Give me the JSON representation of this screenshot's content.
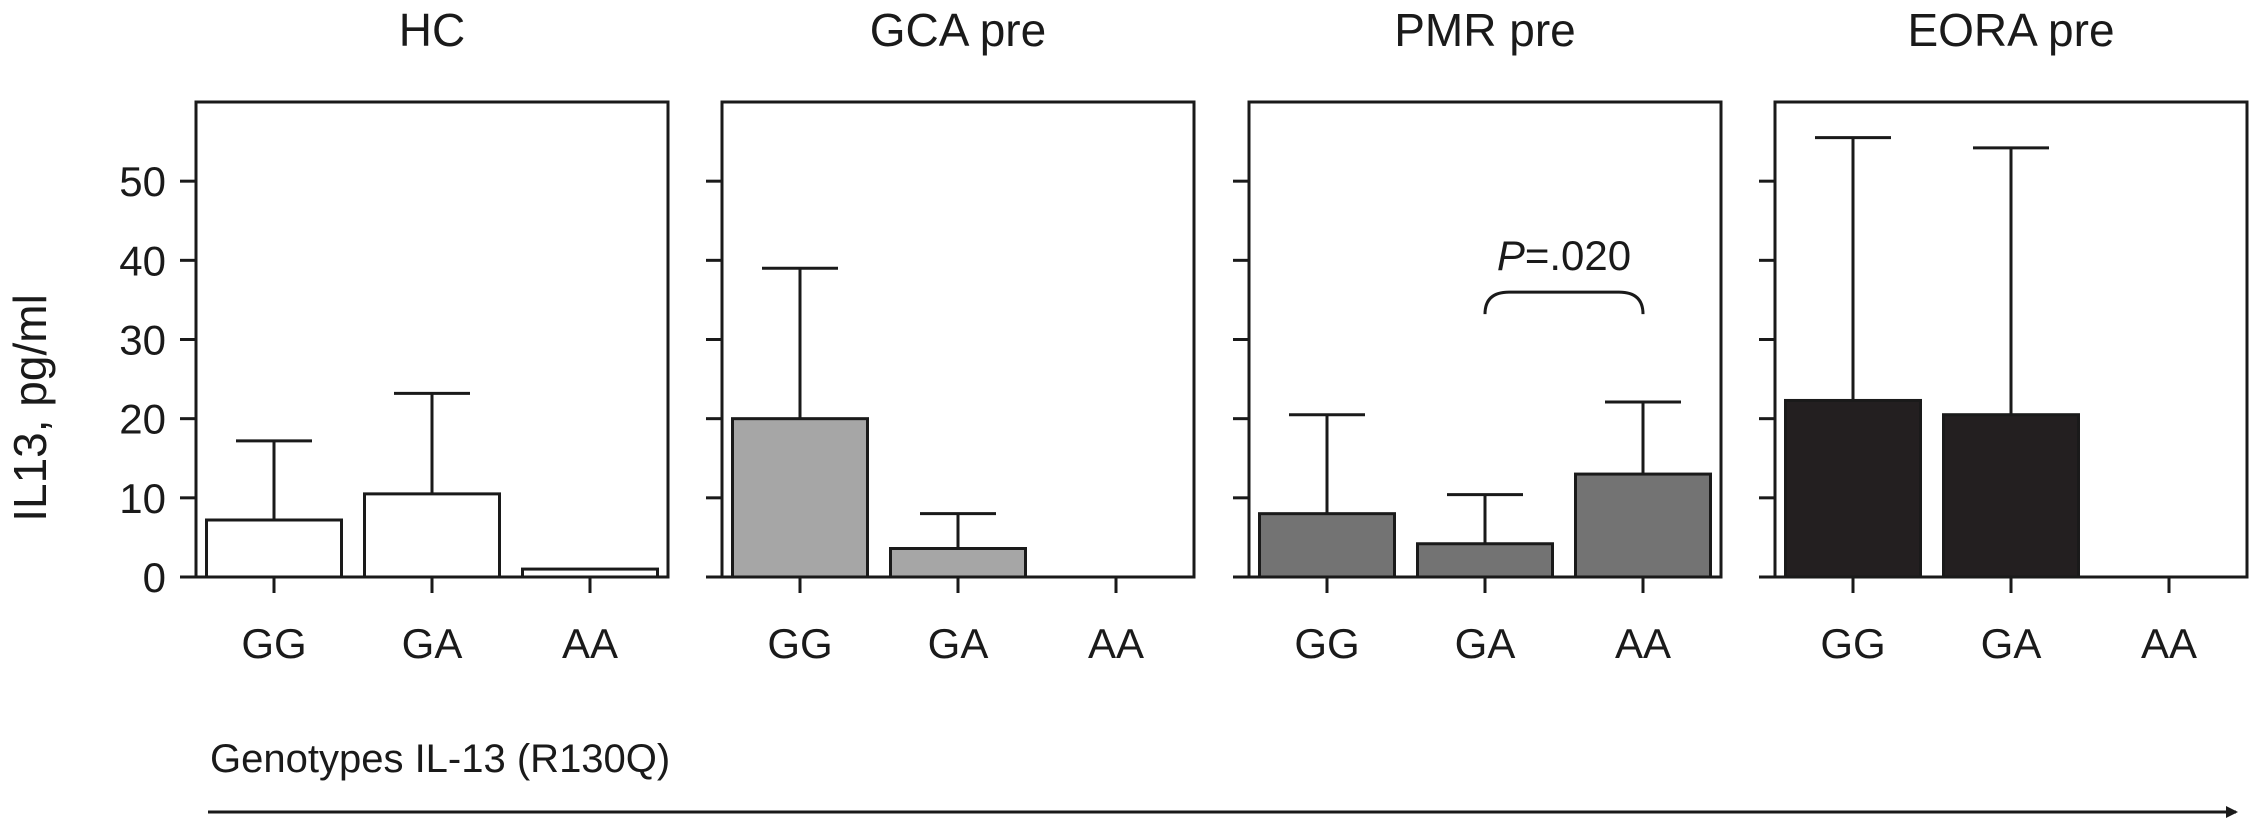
{
  "chart_data": {
    "type": "bar",
    "ylabel": "IL13, pg/ml",
    "xlabel": "Genotypes IL-13 (R130Q)",
    "ylim": [
      0,
      60
    ],
    "yticks": [
      "0",
      "10",
      "20",
      "30",
      "40",
      "50"
    ],
    "grid": false,
    "categories": [
      "GG",
      "GA",
      "AA"
    ],
    "panels": [
      {
        "title": "HC",
        "color": "#ffffff",
        "values": [
          7.2,
          10.5,
          1.0
        ],
        "errors": [
          17.2,
          23.2,
          null
        ]
      },
      {
        "title": "GCA pre",
        "color": "#a6a6a6",
        "values": [
          20.0,
          3.6,
          null
        ],
        "errors": [
          39.0,
          8.0,
          null
        ]
      },
      {
        "title": "PMR pre",
        "color": "#737373",
        "values": [
          8.0,
          4.2,
          13.0
        ],
        "errors": [
          20.5,
          10.4,
          22.1
        ],
        "annotation": {
          "text": ".020",
          "prefix": "P=",
          "between": [
            "GA",
            "AA"
          ],
          "y": 38
        }
      },
      {
        "title": "EORA pre",
        "color": "#231f20",
        "values": [
          22.3,
          20.5,
          null
        ],
        "errors": [
          55.5,
          54.2,
          null
        ]
      }
    ]
  }
}
